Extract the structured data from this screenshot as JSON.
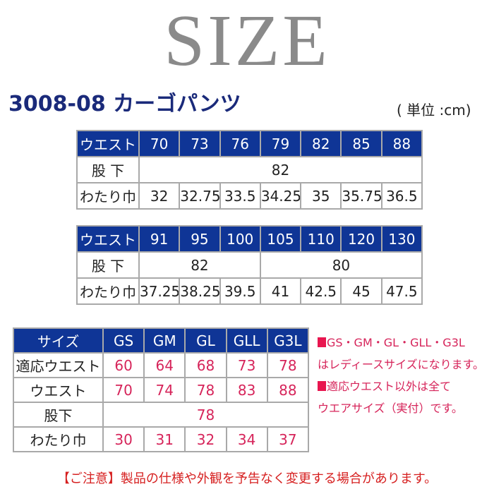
{
  "title": "SIZE",
  "product": "3008-08 カーゴパンツ",
  "unit": "( 単位 :cm)",
  "table1": {
    "labels": [
      "ウエスト",
      "股 下",
      "わたり巾"
    ],
    "waist": [
      "70",
      "73",
      "76",
      "79",
      "82",
      "85",
      "88"
    ],
    "inseam": "82",
    "thigh": [
      "32",
      "32.75",
      "33.5",
      "34.25",
      "35",
      "35.75",
      "36.5"
    ]
  },
  "table2": {
    "labels": [
      "ウエスト",
      "股 下",
      "わたり巾"
    ],
    "waist": [
      "91",
      "95",
      "100",
      "105",
      "110",
      "120",
      "130"
    ],
    "inseam": [
      "82",
      "80"
    ],
    "thigh": [
      "37.25",
      "38.25",
      "39.5",
      "41",
      "42.5",
      "45",
      "47.5"
    ]
  },
  "table3": {
    "labels": [
      "サイズ",
      "適応ウエスト",
      "ウエスト",
      "股下",
      "わたり巾"
    ],
    "sizes": [
      "GS",
      "GM",
      "GL",
      "GLL",
      "G3L"
    ],
    "fit_waist": [
      "60",
      "64",
      "68",
      "73",
      "78"
    ],
    "waist": [
      "70",
      "74",
      "78",
      "83",
      "88"
    ],
    "inseam": "78",
    "thigh": [
      "30",
      "31",
      "32",
      "34",
      "37"
    ]
  },
  "notes": [
    "GS・GM・GL・GLL・G3L",
    "はレディースサイズになります。",
    "適応ウエスト以外は全て",
    "ウエアサイズ（実付）です。"
  ],
  "caution": "【ご注意】製品の仕様や外観を予告なく変更する場合があります。",
  "colors": {
    "header": "#0f3596",
    "accent": "#d6245a",
    "title": "#8a8a8a"
  }
}
